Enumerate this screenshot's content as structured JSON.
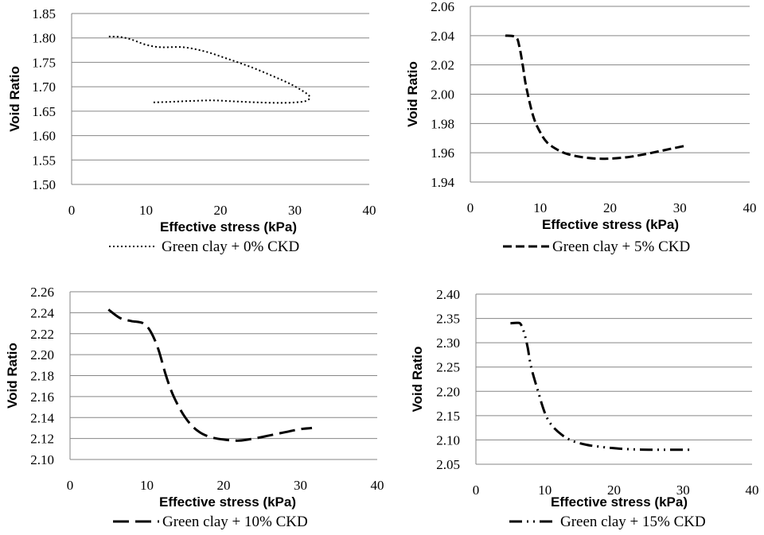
{
  "chart_data": [
    {
      "type": "line",
      "title": "",
      "xlabel": "Effective stress (kPa)",
      "ylabel": "Void Ratio",
      "xlim": [
        0,
        40
      ],
      "ylim": [
        1.5,
        1.85
      ],
      "x_ticks": [
        "0",
        "10",
        "20",
        "30",
        "40"
      ],
      "y_ticks": [
        "1.50",
        "1.55",
        "1.60",
        "1.65",
        "1.70",
        "1.75",
        "1.80",
        "1.85"
      ],
      "grid": "horizontal",
      "legend_position": "bottom",
      "series": [
        {
          "name": "Green clay + 0% CKD",
          "line_style": "dotted",
          "x": [
            5,
            6.5,
            8,
            10,
            12,
            15,
            18,
            21,
            24,
            27,
            29.5,
            31.5,
            32,
            31.5,
            30,
            28,
            25,
            22,
            19,
            16,
            13,
            11
          ],
          "y": [
            1.803,
            1.802,
            1.797,
            1.786,
            1.781,
            1.781,
            1.772,
            1.757,
            1.741,
            1.722,
            1.705,
            1.687,
            1.678,
            1.671,
            1.668,
            1.667,
            1.668,
            1.67,
            1.672,
            1.671,
            1.669,
            1.668
          ]
        }
      ]
    },
    {
      "type": "line",
      "title": "",
      "xlabel": "Effective stress (kPa)",
      "ylabel": "Void Ratio",
      "xlim": [
        0,
        40
      ],
      "ylim": [
        1.94,
        2.06
      ],
      "x_ticks": [
        "0",
        "10",
        "20",
        "30",
        "40"
      ],
      "y_ticks": [
        "1.94",
        "1.96",
        "1.98",
        "2.00",
        "2.02",
        "2.04",
        "2.06"
      ],
      "grid": "horizontal",
      "legend_position": "bottom",
      "series": [
        {
          "name": "Green clay + 5% CKD",
          "line_style": "dashed",
          "x": [
            5,
            6.5,
            7,
            7.5,
            8,
            9,
            10,
            11,
            12.5,
            14,
            16,
            18,
            20,
            22.5,
            25,
            28,
            31
          ],
          "y": [
            2.04,
            2.039,
            2.033,
            2.02,
            2.005,
            1.985,
            1.974,
            1.967,
            1.962,
            1.959,
            1.957,
            1.956,
            1.956,
            1.957,
            1.959,
            1.962,
            1.965
          ]
        }
      ]
    },
    {
      "type": "line",
      "title": "",
      "xlabel": "Effective stress (kPa)",
      "ylabel": "Void Ratio",
      "xlim": [
        0,
        40
      ],
      "ylim": [
        2.1,
        2.26
      ],
      "x_ticks": [
        "0",
        "10",
        "20",
        "30",
        "40"
      ],
      "y_ticks": [
        "2.10",
        "2.12",
        "2.14",
        "2.16",
        "2.18",
        "2.20",
        "2.22",
        "2.24",
        "2.26"
      ],
      "grid": "horizontal",
      "legend_position": "bottom",
      "series": [
        {
          "name": "Green clay + 10% CKD",
          "line_style": "long-dash",
          "x": [
            5,
            6.5,
            8,
            9.5,
            10.5,
            11.5,
            12.5,
            13.5,
            15,
            16.5,
            18,
            20,
            22,
            24,
            26,
            28,
            30,
            31.5
          ],
          "y": [
            2.243,
            2.235,
            2.232,
            2.23,
            2.222,
            2.205,
            2.18,
            2.16,
            2.14,
            2.128,
            2.122,
            2.119,
            2.118,
            2.12,
            2.123,
            2.126,
            2.129,
            2.13
          ]
        }
      ]
    },
    {
      "type": "line",
      "title": "",
      "xlabel": "Effective stress (kPa)",
      "ylabel": "Void Ratio",
      "xlim": [
        0,
        40
      ],
      "ylim": [
        2.05,
        2.4
      ],
      "x_ticks": [
        "0",
        "10",
        "20",
        "30",
        "40"
      ],
      "y_ticks": [
        "2.05",
        "2.10",
        "2.15",
        "2.20",
        "2.25",
        "2.30",
        "2.35",
        "2.40"
      ],
      "grid": "horizontal",
      "legend_position": "bottom",
      "series": [
        {
          "name": "Green clay + 15% CKD",
          "line_style": "long-dash-dot-dot",
          "x": [
            5,
            6,
            6.5,
            7,
            7.5,
            8,
            9,
            10,
            11,
            12.5,
            14,
            16,
            18,
            20,
            22,
            25,
            28,
            31
          ],
          "y": [
            2.34,
            2.341,
            2.338,
            2.32,
            2.29,
            2.25,
            2.2,
            2.155,
            2.13,
            2.11,
            2.098,
            2.09,
            2.086,
            2.083,
            2.081,
            2.08,
            2.08,
            2.08
          ]
        }
      ]
    }
  ]
}
